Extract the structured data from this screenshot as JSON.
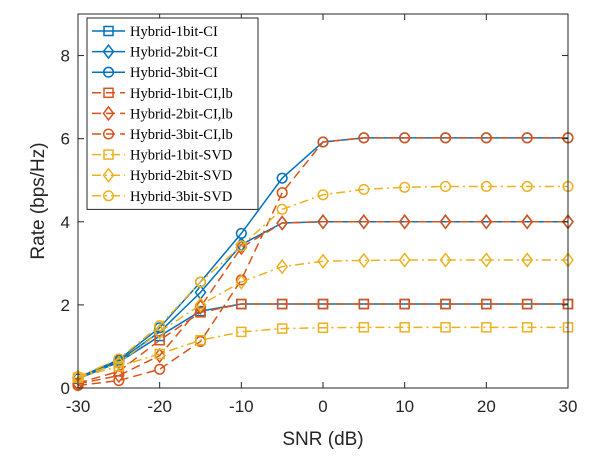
{
  "chart_data": {
    "type": "line",
    "xlabel": "SNR (dB)",
    "ylabel": "Rate (bps/Hz)",
    "xlim": [
      -30,
      30
    ],
    "ylim": [
      0,
      9
    ],
    "xticks": [
      -30,
      -20,
      -10,
      0,
      10,
      20,
      30
    ],
    "xtick_labels": [
      "-30",
      "-20",
      "-10",
      "0",
      "10",
      "20",
      "30"
    ],
    "yticks": [
      0,
      2,
      4,
      6,
      8
    ],
    "ytick_labels": [
      "0",
      "2",
      "4",
      "6",
      "8"
    ],
    "grid": false,
    "legend_position": "top-left",
    "x": [
      -30,
      -25,
      -20,
      -15,
      -10,
      -5,
      0,
      5,
      10,
      15,
      20,
      25,
      30
    ],
    "series": [
      {
        "name": "Hybrid-1bit-CI",
        "color": "#0072BD",
        "marker": "square",
        "dash": "solid",
        "values": [
          0.22,
          0.62,
          1.25,
          1.85,
          2.02,
          2.02,
          2.02,
          2.02,
          2.02,
          2.02,
          2.02,
          2.02,
          2.02
        ]
      },
      {
        "name": "Hybrid-2bit-CI",
        "color": "#0072BD",
        "marker": "diamond",
        "dash": "solid",
        "values": [
          0.24,
          0.65,
          1.35,
          2.3,
          3.45,
          3.97,
          4.0,
          4.0,
          4.0,
          4.0,
          4.0,
          4.0,
          4.0
        ]
      },
      {
        "name": "Hybrid-3bit-CI",
        "color": "#0072BD",
        "marker": "circle",
        "dash": "solid",
        "values": [
          0.25,
          0.68,
          1.45,
          2.55,
          3.72,
          5.05,
          5.92,
          6.02,
          6.02,
          6.02,
          6.02,
          6.02,
          6.02
        ]
      },
      {
        "name": "Hybrid-1bit-CI,lb",
        "color": "#D95319",
        "marker": "square",
        "dash": "dashed",
        "values": [
          0.12,
          0.4,
          1.15,
          1.82,
          2.02,
          2.02,
          2.02,
          2.02,
          2.02,
          2.02,
          2.02,
          2.02,
          2.02
        ]
      },
      {
        "name": "Hybrid-2bit-CI,lb",
        "color": "#D95319",
        "marker": "diamond",
        "dash": "dashed",
        "values": [
          0.1,
          0.3,
          0.78,
          1.95,
          3.38,
          3.97,
          4.0,
          4.0,
          4.0,
          4.0,
          4.0,
          4.0,
          4.0
        ]
      },
      {
        "name": "Hybrid-3bit-CI,lb",
        "color": "#D95319",
        "marker": "circle",
        "dash": "dashed",
        "values": [
          0.06,
          0.18,
          0.45,
          1.12,
          2.6,
          4.7,
          5.92,
          6.02,
          6.02,
          6.02,
          6.02,
          6.02,
          6.02
        ]
      },
      {
        "name": "Hybrid-1bit-SVD",
        "color": "#EDB120",
        "marker": "square",
        "dash": "dashdot",
        "values": [
          0.25,
          0.52,
          0.82,
          1.15,
          1.35,
          1.43,
          1.45,
          1.46,
          1.46,
          1.46,
          1.46,
          1.46,
          1.46
        ]
      },
      {
        "name": "Hybrid-2bit-SVD",
        "color": "#EDB120",
        "marker": "diamond",
        "dash": "dashdot",
        "values": [
          0.26,
          0.6,
          1.35,
          2.0,
          2.55,
          2.92,
          3.05,
          3.07,
          3.08,
          3.08,
          3.08,
          3.08,
          3.08
        ]
      },
      {
        "name": "Hybrid-3bit-SVD",
        "color": "#EDB120",
        "marker": "circle",
        "dash": "dashdot",
        "values": [
          0.27,
          0.7,
          1.5,
          2.55,
          3.42,
          4.3,
          4.65,
          4.78,
          4.83,
          4.85,
          4.85,
          4.85,
          4.85
        ]
      }
    ]
  }
}
